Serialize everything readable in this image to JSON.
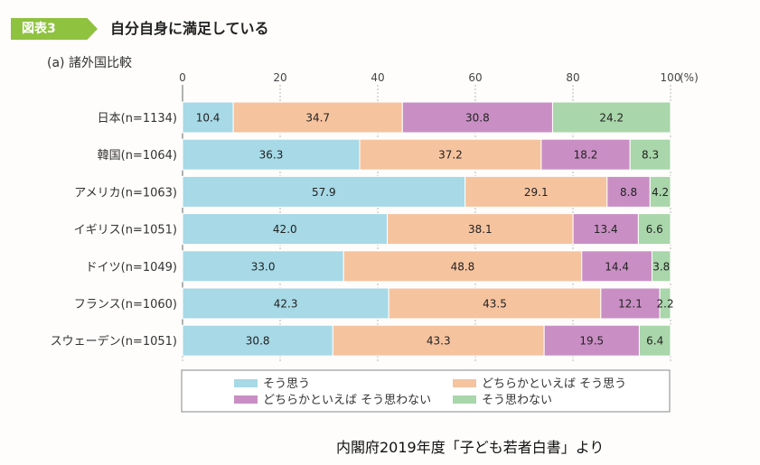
{
  "figure": {
    "badge": "図表3",
    "title": "自分自身に満足している",
    "subtitle": "(a) 諸外国比較",
    "source": "内閣府2019年度「子ども若者白書」より"
  },
  "chart_data": {
    "type": "bar",
    "orientation": "horizontal",
    "stacked": true,
    "normalized": true,
    "categories": [
      "日本(n=1134)",
      "韓国(n=1064)",
      "アメリカ(n=1063)",
      "イギリス(n=1051)",
      "ドイツ(n=1049)",
      "フランス(n=1060)",
      "スウェーデン(n=1051)"
    ],
    "series": [
      {
        "name": "そう思う",
        "color": "#a7d9e6",
        "values": [
          10.4,
          36.3,
          57.9,
          42.0,
          33.0,
          42.3,
          30.8
        ]
      },
      {
        "name": "どちらかといえば そう思う",
        "color": "#f6c39f",
        "values": [
          34.7,
          37.2,
          29.1,
          38.1,
          48.8,
          43.5,
          43.3
        ]
      },
      {
        "name": "どちらかといえば そう思わない",
        "color": "#c98fc4",
        "values": [
          30.8,
          18.2,
          8.8,
          13.4,
          14.4,
          12.1,
          19.5
        ]
      },
      {
        "name": "そう思わない",
        "color": "#a9d6aa",
        "values": [
          24.2,
          8.3,
          4.2,
          6.6,
          3.8,
          2.2,
          6.4
        ]
      }
    ],
    "value_labels": [
      [
        "10.4",
        "34.7",
        "30.8",
        "24.2"
      ],
      [
        "36.3",
        "37.2",
        "18.2",
        "8.3"
      ],
      [
        "57.9",
        "29.1",
        "8.8",
        "4.2"
      ],
      [
        "42.0",
        "38.1",
        "13.4",
        "6.6"
      ],
      [
        "33.0",
        "48.8",
        "14.4",
        "3.8"
      ],
      [
        "42.3",
        "43.5",
        "12.1",
        "2.2"
      ],
      [
        "30.8",
        "43.3",
        "19.5",
        "6.4"
      ]
    ],
    "xticks": [
      "0",
      "20",
      "40",
      "60",
      "80",
      "100"
    ],
    "xunit": "(%)",
    "xlim": [
      0,
      100
    ],
    "legend_position": "bottom",
    "grid": true
  }
}
